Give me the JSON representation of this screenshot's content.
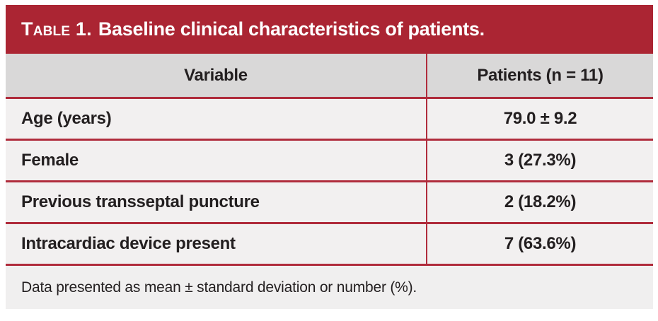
{
  "table": {
    "tag": "Table 1.",
    "title": "Baseline clinical characteristics of patients.",
    "columns": [
      "Variable",
      "Patients (n = 11)"
    ],
    "rows": [
      {
        "variable": "Age (years)",
        "value": "79.0 ± 9.2"
      },
      {
        "variable": "Female",
        "value": "3 (27.3%)"
      },
      {
        "variable": "Previous transseptal puncture",
        "value": "2 (18.2%)"
      },
      {
        "variable": "Intracardiac device present",
        "value": "7 (63.6%)"
      }
    ],
    "footnote": "Data presented as mean ± standard deviation or number (%).",
    "colors": {
      "accent_red": "#AB2533",
      "separator_red": "#B02C3C",
      "header_row_bg": "#D9D8D8",
      "row_bg": "#F2F0F0",
      "footnote_bg": "#F0EFEF",
      "text": "#231F20",
      "title_text": "#FFFFFF"
    }
  }
}
